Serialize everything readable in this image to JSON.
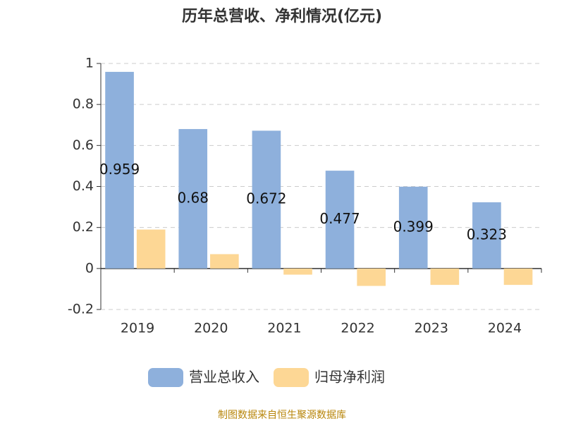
{
  "chart_data": {
    "type": "bar",
    "title": "历年总营收、净利情况(亿元)",
    "categories": [
      "2019",
      "2020",
      "2021",
      "2022",
      "2023",
      "2024"
    ],
    "series": [
      {
        "name": "营业总收入",
        "color": "#8eb0dc",
        "values": [
          0.959,
          0.68,
          0.672,
          0.477,
          0.399,
          0.323
        ],
        "show_labels": true
      },
      {
        "name": "归母净利润",
        "color": "#fdd795",
        "values": [
          0.19,
          0.07,
          -0.03,
          -0.085,
          -0.08,
          -0.08
        ],
        "show_labels": false
      }
    ],
    "ylim": [
      -0.2,
      1
    ],
    "yticks": [
      -0.2,
      0,
      0.2,
      0.4,
      0.6,
      0.8,
      1
    ],
    "grid": true,
    "legend": "bottom",
    "source": "制图数据来自恒生聚源数据库"
  }
}
